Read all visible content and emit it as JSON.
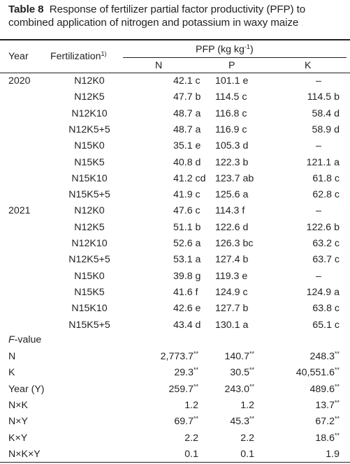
{
  "caption": {
    "label": "Table 8",
    "text": "Response of fertilizer partial factor productivity (PFP) to combined application of nitrogen and potassium in waxy maize"
  },
  "header": {
    "year": "Year",
    "fertilization": "Fertilization",
    "fertilization_note": "1)",
    "pfp_label": "PFP (kg kg",
    "pfp_exp": "-1",
    "pfp_close": ")",
    "n": "N",
    "p": "P",
    "k": "K"
  },
  "rows": [
    {
      "year": "2020",
      "trt": "N12K0",
      "n": "42.1 c",
      "p": "101.1 e",
      "k": "–"
    },
    {
      "year": "",
      "trt": "N12K5",
      "n": "47.7 b",
      "p": "114.5 c",
      "k": "114.5 b"
    },
    {
      "year": "",
      "trt": "N12K10",
      "n": "48.7 a",
      "p": "116.8 c",
      "k": "58.4 d"
    },
    {
      "year": "",
      "trt": "N12K5+5",
      "n": "48.7 a",
      "p": "116.9 c",
      "k": "58.9 d"
    },
    {
      "year": "",
      "trt": "N15K0",
      "n": "35.1 e",
      "p": "105.3 d",
      "k": "–"
    },
    {
      "year": "",
      "trt": "N15K5",
      "n": "40.8 d",
      "p": "122.3 b",
      "k": "121.1 a"
    },
    {
      "year": "",
      "trt": "N15K10",
      "n": "41.2 cd",
      "p": "123.7 ab",
      "k": "61.8 c"
    },
    {
      "year": "",
      "trt": "N15K5+5",
      "n": "41.9 c",
      "p": "125.6 a",
      "k": "62.8 c"
    },
    {
      "year": "2021",
      "trt": "N12K0",
      "n": "47.6 c",
      "p": "114.3 f",
      "k": "–"
    },
    {
      "year": "",
      "trt": "N12K5",
      "n": "51.1 b",
      "p": "122.6 d",
      "k": "122.6 b"
    },
    {
      "year": "",
      "trt": "N12K10",
      "n": "52.6 a",
      "p": "126.3 bc",
      "k": "63.2 c"
    },
    {
      "year": "",
      "trt": "N12K5+5",
      "n": "53.1 a",
      "p": "127.4 b",
      "k": "63.7 c"
    },
    {
      "year": "",
      "trt": "N15K0",
      "n": "39.8 g",
      "p": "119.3 e",
      "k": "–"
    },
    {
      "year": "",
      "trt": "N15K5",
      "n": "41.6 f",
      "p": "124.9 c",
      "k": "124.9 a"
    },
    {
      "year": "",
      "trt": "N15K10",
      "n": "42.6 e",
      "p": "127.7 b",
      "k": "63.8 c"
    },
    {
      "year": "",
      "trt": "N15K5+5",
      "n": "43.4 d",
      "p": "130.1 a",
      "k": "65.1 c"
    }
  ],
  "fvalue": {
    "label_italic": "F",
    "label_rest": "-value",
    "rows": [
      {
        "source": "N",
        "n": "2,773.7",
        "n_sig": "**",
        "p": "140.7",
        "p_sig": "**",
        "k": "248.3",
        "k_sig": "**"
      },
      {
        "source": "K",
        "n": "29.3",
        "n_sig": "**",
        "p": "30.5",
        "p_sig": "**",
        "k": "40,551.6",
        "k_sig": "**"
      },
      {
        "source": "Year (Y)",
        "n": "259.7",
        "n_sig": "**",
        "p": "243.0",
        "p_sig": "**",
        "k": "489.6",
        "k_sig": "**"
      },
      {
        "source": "N×K",
        "n": "1.2",
        "n_sig": "",
        "p": "1.2",
        "p_sig": "",
        "k": "13.7",
        "k_sig": "**"
      },
      {
        "source": "N×Y",
        "n": "69.7",
        "n_sig": "**",
        "p": "45.3",
        "p_sig": "**",
        "k": "67.2",
        "k_sig": "**"
      },
      {
        "source": "K×Y",
        "n": "2.2",
        "n_sig": "",
        "p": "2.2",
        "p_sig": "",
        "k": "18.6",
        "k_sig": "**"
      },
      {
        "source": "N×K×Y",
        "n": "0.1",
        "n_sig": "",
        "p": "0.1",
        "p_sig": "",
        "k": "1.9",
        "k_sig": ""
      }
    ]
  }
}
